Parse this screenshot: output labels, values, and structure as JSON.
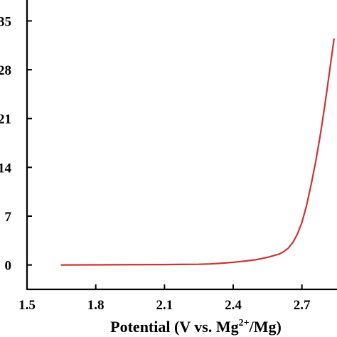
{
  "chart_data": {
    "type": "line",
    "title": "",
    "xlabel": {
      "prefix": "Potential (V vs. Mg",
      "superscript": "2+",
      "suffix": "/Mg)"
    },
    "ylabel": "",
    "xlim": [
      1.5,
      2.85
    ],
    "ylim": [
      -3.5,
      38
    ],
    "x_ticks": [
      {
        "value": 1.5,
        "label": "1.5"
      },
      {
        "value": 1.8,
        "label": "1.8"
      },
      {
        "value": 2.1,
        "label": "2.1"
      },
      {
        "value": 2.4,
        "label": "2.4"
      },
      {
        "value": 2.7,
        "label": "2.7"
      }
    ],
    "y_ticks": [
      {
        "value": 0,
        "label": "0"
      },
      {
        "value": 7,
        "label": "7"
      },
      {
        "value": 14,
        "label": "14"
      },
      {
        "value": 21,
        "label": "21"
      },
      {
        "value": 28,
        "label": "28"
      },
      {
        "value": 35,
        "label": "35"
      }
    ],
    "grid": false,
    "series": [
      {
        "color": "#cc3333",
        "x": [
          1.65,
          1.8,
          1.95,
          2.1,
          2.25,
          2.3,
          2.35,
          2.4,
          2.45,
          2.5,
          2.55,
          2.6,
          2.62,
          2.64,
          2.66,
          2.68,
          2.7,
          2.72,
          2.74,
          2.76,
          2.78,
          2.8,
          2.82,
          2.84
        ],
        "y": [
          0,
          0.02,
          0.04,
          0.06,
          0.1,
          0.15,
          0.25,
          0.38,
          0.55,
          0.75,
          1.1,
          1.55,
          1.9,
          2.4,
          3.2,
          4.4,
          6.1,
          8.5,
          11.5,
          14.8,
          18.6,
          22.9,
          27.6,
          32.4
        ]
      }
    ]
  }
}
